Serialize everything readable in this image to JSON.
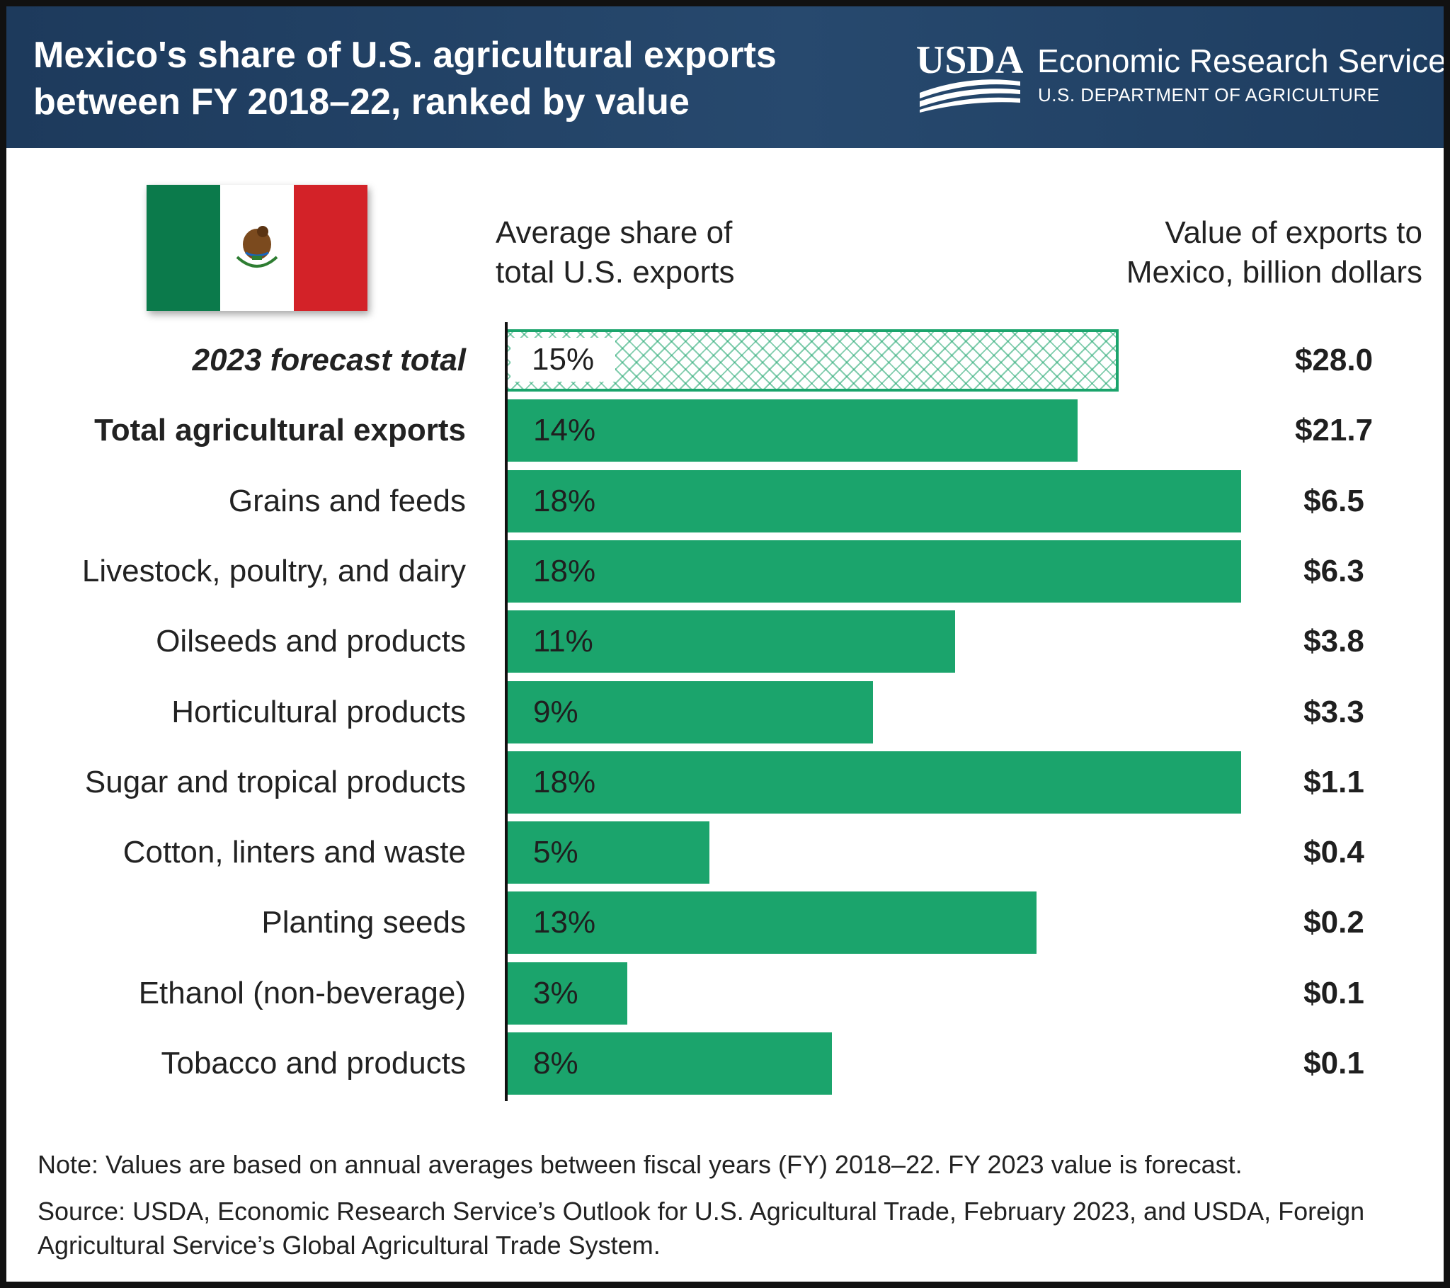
{
  "header": {
    "title": "Mexico's share of U.S. agricultural exports between FY 2018–22, ranked by value",
    "org_mark": "USDA",
    "org_name": "Economic Research Service",
    "org_dept": "U.S. DEPARTMENT OF AGRICULTURE",
    "colors": {
      "background": "#1f3f63",
      "text": "#ffffff"
    }
  },
  "flag": {
    "icon": "mexico-flag-icon",
    "colors": {
      "green": "#0b7a4b",
      "white": "#ffffff",
      "red": "#d32228"
    }
  },
  "columns": {
    "share_header": "Average share of\ntotal U.S. exports",
    "value_header": "Value of exports to\nMexico, billion dollars"
  },
  "chart_data": {
    "type": "bar",
    "orientation": "horizontal",
    "categories": [
      "2023 forecast total",
      "Total agricultural exports",
      "Grains and feeds",
      "Livestock, poultry, and dairy",
      "Oilseeds and products",
      "Horticultural products",
      "Sugar and tropical products",
      "Cotton, linters and waste",
      "Planting seeds",
      "Ethanol (non-beverage)",
      "Tobacco and products"
    ],
    "share_pct": [
      15,
      14,
      18,
      18,
      11,
      9,
      18,
      5,
      13,
      3,
      8
    ],
    "share_labels": [
      "15%",
      "14%",
      "18%",
      "18%",
      "11%",
      "9%",
      "18%",
      "5%",
      "13%",
      "3%",
      "8%"
    ],
    "value_labels": [
      "$28.0",
      "$21.7",
      "$6.5",
      "$6.3",
      "$3.8",
      "$3.3",
      "$1.1",
      "$0.4",
      "$0.2",
      "$0.1",
      "$0.1"
    ],
    "values_billion_usd": [
      28.0,
      21.7,
      6.5,
      6.3,
      3.8,
      3.3,
      1.1,
      0.4,
      0.2,
      0.1,
      0.1
    ],
    "forecast_index": 0,
    "total_index": 1,
    "xlim": [
      0,
      18
    ],
    "colors": {
      "bar": "#1ba46c",
      "forecast_hatch": "#1ba46c"
    }
  },
  "footer": {
    "note": "Note: Values are based on annual averages between fiscal years (FY) 2018–22. FY 2023 value is forecast.",
    "source": "Source: USDA, Economic Research Service’s Outlook for U.S. Agricultural Trade, February 2023, and USDA, Foreign Agricultural Service’s Global Agricultural Trade System."
  }
}
